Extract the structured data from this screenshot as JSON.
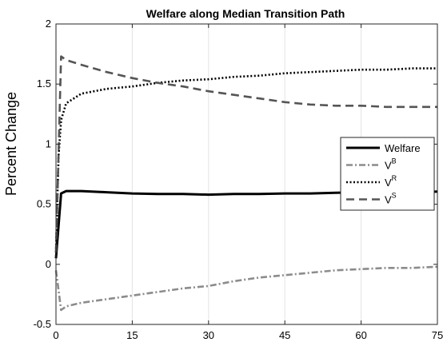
{
  "chart_data": {
    "type": "line",
    "title": "Welfare along Median Transition Path",
    "ylabel": "Percent Change",
    "xlabel": "",
    "xlim": [
      0,
      75
    ],
    "ylim": [
      -0.5,
      2
    ],
    "xticks": [
      0,
      15,
      30,
      45,
      60,
      75
    ],
    "yticks": [
      -0.5,
      0,
      0.5,
      1,
      1.5,
      2
    ],
    "xtick_labels": [
      "0",
      "15",
      "30",
      "45",
      "60",
      "75"
    ],
    "ytick_labels": [
      "-0.5",
      "0",
      "0.5",
      "1",
      "1.5",
      "2"
    ],
    "grid": "vertical",
    "legend_position": "right",
    "series": [
      {
        "name": "Welfare",
        "style": "solid",
        "color": "#000000",
        "x": [
          0,
          1,
          2,
          5,
          10,
          15,
          20,
          25,
          30,
          35,
          40,
          45,
          50,
          55,
          60,
          65,
          70,
          75
        ],
        "y": [
          0.05,
          0.59,
          0.61,
          0.61,
          0.6,
          0.59,
          0.585,
          0.585,
          0.58,
          0.585,
          0.585,
          0.59,
          0.59,
          0.595,
          0.6,
          0.6,
          0.6,
          0.605
        ]
      },
      {
        "name": "V",
        "superscript": "B",
        "style": "dashdot",
        "color": "#8c8c8c",
        "x": [
          0,
          1,
          2,
          5,
          10,
          15,
          20,
          25,
          30,
          35,
          40,
          45,
          50,
          55,
          60,
          65,
          70,
          75
        ],
        "y": [
          -0.05,
          -0.38,
          -0.35,
          -0.32,
          -0.29,
          -0.26,
          -0.23,
          -0.2,
          -0.18,
          -0.14,
          -0.11,
          -0.09,
          -0.07,
          -0.05,
          -0.04,
          -0.03,
          -0.03,
          -0.02
        ]
      },
      {
        "name": "V",
        "superscript": "R",
        "style": "dotted",
        "color": "#000000",
        "x": [
          0,
          0.5,
          1,
          2,
          5,
          10,
          15,
          20,
          25,
          30,
          35,
          40,
          45,
          50,
          55,
          60,
          65,
          70,
          75
        ],
        "y": [
          0.1,
          0.9,
          1.2,
          1.34,
          1.42,
          1.46,
          1.48,
          1.51,
          1.53,
          1.54,
          1.56,
          1.57,
          1.59,
          1.6,
          1.61,
          1.62,
          1.62,
          1.63,
          1.63
        ]
      },
      {
        "name": "V",
        "superscript": "S",
        "style": "dashed",
        "color": "#555555",
        "x": [
          0,
          1,
          2,
          5,
          10,
          15,
          20,
          25,
          30,
          35,
          40,
          45,
          50,
          55,
          60,
          65,
          70,
          75
        ],
        "y": [
          0.1,
          1.73,
          1.7,
          1.66,
          1.6,
          1.55,
          1.51,
          1.48,
          1.44,
          1.41,
          1.38,
          1.35,
          1.33,
          1.32,
          1.32,
          1.31,
          1.31,
          1.31
        ]
      }
    ]
  }
}
